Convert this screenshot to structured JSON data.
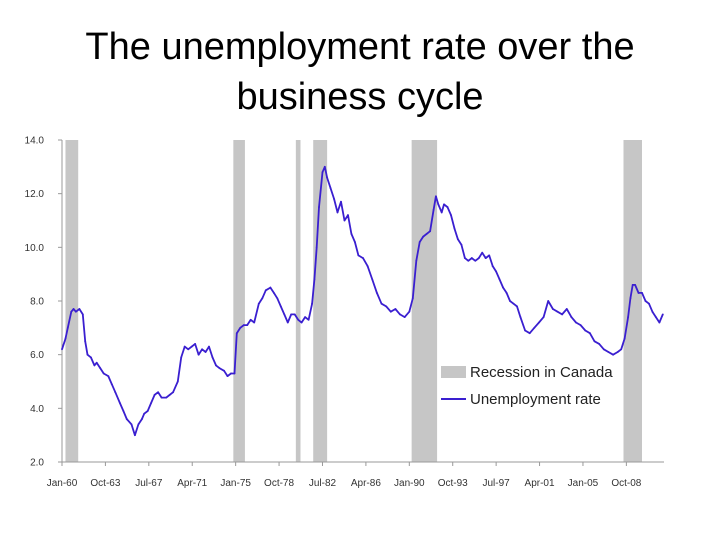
{
  "slide": {
    "title_line1": "The unemployment rate over the",
    "title_line2": "business cycle"
  },
  "chart_data": {
    "type": "line",
    "xlim": [
      1960.0,
      2012.0
    ],
    "ylim": [
      2.0,
      14.0
    ],
    "y_ticks": [
      2.0,
      4.0,
      6.0,
      8.0,
      10.0,
      12.0,
      14.0
    ],
    "y_tick_labels": [
      "2.0",
      "4.0",
      "6.0",
      "8.0",
      "10.0",
      "12.0",
      "14.0"
    ],
    "x_ticks": [
      1960.0,
      1963.75,
      1967.5,
      1971.25,
      1975.0,
      1978.75,
      1982.5,
      1986.25,
      1990.0,
      1993.75,
      1997.5,
      2001.25,
      2005.0,
      2008.75
    ],
    "x_tick_labels": [
      "Jan-60",
      "Oct-63",
      "Jul-67",
      "Apr-71",
      "Jan-75",
      "Oct-78",
      "Jul-82",
      "Apr-86",
      "Jan-90",
      "Oct-93",
      "Jul-97",
      "Apr-01",
      "Jan-05",
      "Oct-08"
    ],
    "grid": false,
    "legend_position": "bottom-right",
    "recessions": [
      [
        1960.3,
        1961.4
      ],
      [
        1974.8,
        1975.8
      ],
      [
        1980.2,
        1980.6
      ],
      [
        1981.7,
        1982.9
      ],
      [
        1990.2,
        1992.4
      ],
      [
        2008.5,
        2010.1
      ]
    ],
    "series": [
      {
        "name": "Unemployment rate",
        "color": "#3a1fd0",
        "x": [
          1960.0,
          1960.3,
          1960.5,
          1960.8,
          1961.0,
          1961.2,
          1961.5,
          1961.8,
          1962.0,
          1962.2,
          1962.5,
          1962.8,
          1963.0,
          1963.3,
          1963.6,
          1964.0,
          1964.3,
          1964.6,
          1965.0,
          1965.3,
          1965.6,
          1966.0,
          1966.3,
          1966.6,
          1966.9,
          1967.1,
          1967.4,
          1967.7,
          1968.0,
          1968.3,
          1968.6,
          1969.0,
          1969.3,
          1969.6,
          1970.0,
          1970.3,
          1970.6,
          1970.9,
          1971.2,
          1971.5,
          1971.8,
          1972.1,
          1972.4,
          1972.7,
          1973.0,
          1973.3,
          1973.6,
          1974.0,
          1974.3,
          1974.6,
          1974.9,
          1975.1,
          1975.4,
          1975.7,
          1976.0,
          1976.3,
          1976.6,
          1977.0,
          1977.3,
          1977.6,
          1978.0,
          1978.3,
          1978.6,
          1978.9,
          1979.2,
          1979.5,
          1979.8,
          1980.1,
          1980.4,
          1980.7,
          1981.0,
          1981.3,
          1981.6,
          1981.8,
          1982.0,
          1982.2,
          1982.5,
          1982.7,
          1982.9,
          1983.2,
          1983.5,
          1983.8,
          1984.1,
          1984.4,
          1984.7,
          1985.0,
          1985.3,
          1985.6,
          1986.0,
          1986.4,
          1986.8,
          1987.2,
          1987.6,
          1988.0,
          1988.4,
          1988.8,
          1989.2,
          1989.6,
          1990.0,
          1990.3,
          1990.6,
          1990.9,
          1991.2,
          1991.5,
          1991.8,
          1992.1,
          1992.3,
          1992.5,
          1992.8,
          1993.0,
          1993.3,
          1993.6,
          1993.9,
          1994.2,
          1994.5,
          1994.8,
          1995.1,
          1995.4,
          1995.7,
          1996.0,
          1996.3,
          1996.6,
          1996.9,
          1997.2,
          1997.5,
          1997.8,
          1998.1,
          1998.4,
          1998.7,
          1999.0,
          1999.3,
          1999.6,
          2000.0,
          2000.4,
          2000.8,
          2001.2,
          2001.6,
          2002.0,
          2002.4,
          2002.8,
          2003.2,
          2003.6,
          2004.0,
          2004.4,
          2004.8,
          2005.2,
          2005.6,
          2006.0,
          2006.4,
          2006.8,
          2007.2,
          2007.6,
          2008.0,
          2008.3,
          2008.6,
          2008.9,
          2009.1,
          2009.3,
          2009.5,
          2009.8,
          2010.1,
          2010.4,
          2010.7,
          2011.0,
          2011.3,
          2011.6,
          2011.9
        ],
        "y": [
          6.2,
          6.6,
          7.0,
          7.6,
          7.7,
          7.6,
          7.7,
          7.5,
          6.5,
          6.0,
          5.9,
          5.6,
          5.7,
          5.5,
          5.3,
          5.2,
          4.9,
          4.6,
          4.2,
          3.9,
          3.6,
          3.4,
          3.0,
          3.4,
          3.6,
          3.8,
          3.9,
          4.2,
          4.5,
          4.6,
          4.4,
          4.4,
          4.5,
          4.6,
          5.0,
          5.9,
          6.3,
          6.2,
          6.3,
          6.4,
          6.0,
          6.2,
          6.1,
          6.3,
          5.9,
          5.6,
          5.5,
          5.4,
          5.2,
          5.3,
          5.3,
          6.8,
          7.0,
          7.1,
          7.1,
          7.3,
          7.2,
          7.9,
          8.1,
          8.4,
          8.5,
          8.3,
          8.1,
          7.8,
          7.5,
          7.2,
          7.5,
          7.5,
          7.3,
          7.2,
          7.4,
          7.3,
          7.9,
          8.8,
          10.0,
          11.5,
          12.8,
          13.0,
          12.6,
          12.2,
          11.8,
          11.3,
          11.7,
          11.0,
          11.2,
          10.5,
          10.2,
          9.7,
          9.6,
          9.3,
          8.8,
          8.3,
          7.9,
          7.8,
          7.6,
          7.7,
          7.5,
          7.4,
          7.6,
          8.1,
          9.5,
          10.2,
          10.4,
          10.5,
          10.6,
          11.4,
          11.9,
          11.6,
          11.3,
          11.6,
          11.5,
          11.2,
          10.7,
          10.3,
          10.1,
          9.6,
          9.5,
          9.6,
          9.5,
          9.6,
          9.8,
          9.6,
          9.7,
          9.3,
          9.1,
          8.8,
          8.5,
          8.3,
          8.0,
          7.9,
          7.8,
          7.4,
          6.9,
          6.8,
          7.0,
          7.2,
          7.4,
          8.0,
          7.7,
          7.6,
          7.5,
          7.7,
          7.4,
          7.2,
          7.1,
          6.9,
          6.8,
          6.5,
          6.4,
          6.2,
          6.1,
          6.0,
          6.1,
          6.2,
          6.6,
          7.4,
          8.1,
          8.6,
          8.6,
          8.3,
          8.3,
          8.0,
          7.9,
          7.6,
          7.4,
          7.2,
          7.5
        ]
      }
    ],
    "legend": [
      {
        "label": "Recession in Canada",
        "kind": "band",
        "color": "#c6c6c6"
      },
      {
        "label": "Unemployment rate",
        "kind": "line",
        "color": "#3a1fd0"
      }
    ]
  }
}
